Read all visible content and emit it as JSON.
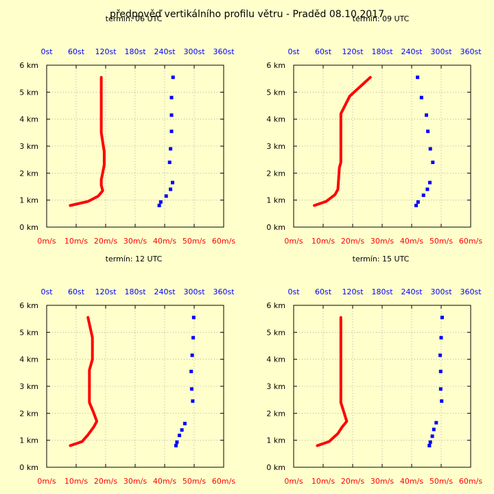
{
  "title": "předpověď vertikálního profilu větru - Praděd 08.10.2017",
  "colors": {
    "background": "#ffffcc",
    "speed": "#ff0000",
    "direction": "#0000ff",
    "grid": "#a0a0a0",
    "axis": "#000000"
  },
  "chart_data": [
    {
      "type": "line",
      "subtitle": "termín: 06 UTC",
      "x_bottom": {
        "ticks": [
          "0m/s",
          "10m/s",
          "20m/s",
          "30m/s",
          "40m/s",
          "50m/s",
          "60m/s"
        ],
        "range": [
          0,
          60
        ]
      },
      "x_top": {
        "ticks": [
          "0st",
          "60st",
          "120st",
          "180st",
          "240st",
          "300st",
          "360st"
        ],
        "range": [
          0,
          360
        ]
      },
      "y": {
        "ticks": [
          "0 km",
          "1 km",
          "2 km",
          "3 km",
          "4 km",
          "5 km",
          "6 km"
        ],
        "range": [
          0,
          6
        ]
      },
      "grid": true,
      "series": [
        {
          "kind": "speed_line",
          "color": "#ff0000",
          "points": [
            [
              8,
              0.8
            ],
            [
              14,
              0.95
            ],
            [
              17.5,
              1.15
            ],
            [
              19,
              1.35
            ],
            [
              18.5,
              1.55
            ],
            [
              18.5,
              1.75
            ],
            [
              19.5,
              2.3
            ],
            [
              19.5,
              2.8
            ],
            [
              18.5,
              3.5
            ],
            [
              18.5,
              4.5
            ],
            [
              18.5,
              5.55
            ]
          ]
        },
        {
          "kind": "direction_points",
          "color": "#0000ff",
          "points": [
            [
              229,
              0.8
            ],
            [
              232,
              0.93
            ],
            [
              243,
              1.15
            ],
            [
              252,
              1.4
            ],
            [
              256,
              1.65
            ],
            [
              250,
              2.4
            ],
            [
              252,
              2.9
            ],
            [
              254,
              3.55
            ],
            [
              254,
              4.15
            ],
            [
              254,
              4.8
            ],
            [
              257,
              5.55
            ]
          ]
        }
      ]
    },
    {
      "type": "line",
      "subtitle": "termín: 09 UTC",
      "x_bottom": {
        "ticks": [
          "0m/s",
          "10m/s",
          "20m/s",
          "30m/s",
          "40m/s",
          "50m/s",
          "60m/s"
        ],
        "range": [
          0,
          60
        ]
      },
      "x_top": {
        "ticks": [
          "0st",
          "60st",
          "120st",
          "180st",
          "240st",
          "300st",
          "360st"
        ],
        "range": [
          0,
          360
        ]
      },
      "y": {
        "ticks": [
          "0 km",
          "1 km",
          "2 km",
          "3 km",
          "4 km",
          "5 km",
          "6 km"
        ],
        "range": [
          0,
          6
        ]
      },
      "grid": true,
      "series": [
        {
          "kind": "speed_line",
          "color": "#ff0000",
          "points": [
            [
              7,
              0.8
            ],
            [
              11,
              0.95
            ],
            [
              14,
              1.2
            ],
            [
              15,
              1.4
            ],
            [
              15.5,
              2.2
            ],
            [
              16,
              2.4
            ],
            [
              16,
              4.2
            ],
            [
              19,
              4.85
            ],
            [
              22,
              5.15
            ],
            [
              26,
              5.55
            ]
          ]
        },
        {
          "kind": "direction_points",
          "color": "#0000ff",
          "points": [
            [
              249,
              0.8
            ],
            [
              253,
              0.93
            ],
            [
              264,
              1.18
            ],
            [
              272,
              1.4
            ],
            [
              277,
              1.65
            ],
            [
              283,
              2.4
            ],
            [
              278,
              2.9
            ],
            [
              273,
              3.55
            ],
            [
              270,
              4.15
            ],
            [
              260,
              4.8
            ],
            [
              252,
              5.55
            ]
          ]
        }
      ]
    },
    {
      "type": "line",
      "subtitle": "termín: 12 UTC",
      "x_bottom": {
        "ticks": [
          "0m/s",
          "10m/s",
          "20m/s",
          "30m/s",
          "40m/s",
          "50m/s",
          "60m/s"
        ],
        "range": [
          0,
          60
        ]
      },
      "x_top": {
        "ticks": [
          "0st",
          "60st",
          "120st",
          "180st",
          "240st",
          "300st",
          "360st"
        ],
        "range": [
          0,
          360
        ]
      },
      "y": {
        "ticks": [
          "0 km",
          "1 km",
          "2 km",
          "3 km",
          "4 km",
          "5 km",
          "6 km"
        ],
        "range": [
          0,
          6
        ]
      },
      "grid": true,
      "series": [
        {
          "kind": "speed_line",
          "color": "#ff0000",
          "points": [
            [
              8,
              0.8
            ],
            [
              12,
              0.95
            ],
            [
              14,
              1.2
            ],
            [
              16,
              1.5
            ],
            [
              17,
              1.7
            ],
            [
              16,
              2.0
            ],
            [
              14.5,
              2.4
            ],
            [
              14.5,
              3.6
            ],
            [
              15.5,
              4.0
            ],
            [
              15.5,
              4.8
            ],
            [
              14,
              5.55
            ]
          ]
        },
        {
          "kind": "direction_points",
          "color": "#0000ff",
          "points": [
            [
              263,
              0.8
            ],
            [
              265,
              0.93
            ],
            [
              270,
              1.18
            ],
            [
              275,
              1.38
            ],
            [
              281,
              1.62
            ],
            [
              297,
              2.45
            ],
            [
              295,
              2.9
            ],
            [
              294,
              3.55
            ],
            [
              296,
              4.15
            ],
            [
              298,
              4.8
            ],
            [
              299,
              5.55
            ]
          ]
        }
      ]
    },
    {
      "type": "line",
      "subtitle": "termín: 15 UTC",
      "x_bottom": {
        "ticks": [
          "0m/s",
          "10m/s",
          "20m/s",
          "30m/s",
          "40m/s",
          "50m/s",
          "60m/s"
        ],
        "range": [
          0,
          60
        ]
      },
      "x_top": {
        "ticks": [
          "0st",
          "60st",
          "120st",
          "180st",
          "240st",
          "300st",
          "360st"
        ],
        "range": [
          0,
          360
        ]
      },
      "y": {
        "ticks": [
          "0 km",
          "1 km",
          "2 km",
          "3 km",
          "4 km",
          "5 km",
          "6 km"
        ],
        "range": [
          0,
          6
        ]
      },
      "grid": true,
      "series": [
        {
          "kind": "speed_line",
          "color": "#ff0000",
          "points": [
            [
              8,
              0.8
            ],
            [
              12,
              0.95
            ],
            [
              15,
              1.25
            ],
            [
              16.5,
              1.5
            ],
            [
              18,
              1.7
            ],
            [
              16,
              2.4
            ],
            [
              16,
              5.55
            ]
          ]
        },
        {
          "kind": "direction_points",
          "color": "#0000ff",
          "points": [
            [
              276,
              0.8
            ],
            [
              278,
              0.93
            ],
            [
              282,
              1.15
            ],
            [
              285,
              1.4
            ],
            [
              290,
              1.65
            ],
            [
              301,
              2.45
            ],
            [
              299,
              2.9
            ],
            [
              299,
              3.55
            ],
            [
              298,
              4.15
            ],
            [
              300,
              4.8
            ],
            [
              302,
              5.55
            ]
          ]
        }
      ]
    }
  ]
}
